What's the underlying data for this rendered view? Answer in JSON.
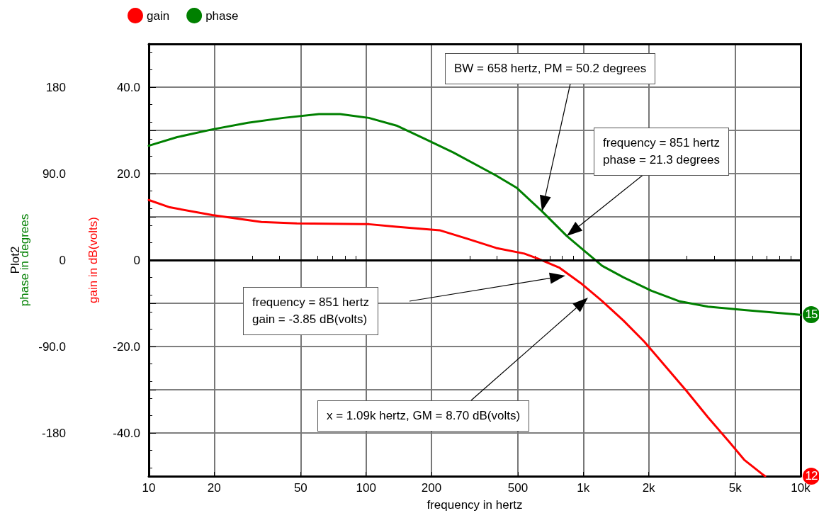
{
  "chart_data": {
    "type": "line",
    "xlabel": "frequency in hertz",
    "ylabel": "gain in dB(volts)",
    "y2label": "phase in degrees",
    "log": "x",
    "grid": true,
    "legend": "top left",
    "marker": "none",
    "line_style": "solid",
    "xlim": [
      10,
      10000
    ],
    "xticks": [
      10,
      20,
      {
        "value": 30,
        "label": null
      },
      {
        "value": 40,
        "label": null
      },
      50,
      {
        "value": 60,
        "label": null
      },
      {
        "value": 70,
        "label": null
      },
      {
        "value": 80,
        "label": null
      },
      {
        "value": 90,
        "label": null
      },
      100,
      200,
      {
        "value": 300,
        "label": null
      },
      {
        "value": 400,
        "label": null
      },
      500,
      {
        "value": 600,
        "label": null
      },
      {
        "value": 700,
        "label": null
      },
      {
        "value": 800,
        "label": null
      },
      {
        "value": 900,
        "label": null
      },
      {
        "value": 1000,
        "label": "1k"
      },
      {
        "value": 2000,
        "label": "2k"
      },
      {
        "value": 3000,
        "label": null
      },
      {
        "value": 4000,
        "label": null
      },
      {
        "value": 5000,
        "label": "5k"
      },
      {
        "value": 6000,
        "label": null
      },
      {
        "value": 7000,
        "label": null
      },
      {
        "value": 8000,
        "label": null
      },
      {
        "value": 9000,
        "label": null
      },
      {
        "value": 10000,
        "label": "10k"
      }
    ],
    "ylim": [
      -50,
      50
    ],
    "yticks": [
      {
        "value": -50,
        "label": null
      },
      {
        "value": -40,
        "label": "-40.0"
      },
      {
        "value": -30,
        "label": null
      },
      {
        "value": -20,
        "label": "-20.0"
      },
      {
        "value": -10,
        "label": null
      },
      0,
      {
        "value": 10,
        "label": null
      },
      {
        "value": 20,
        "label": "20.0"
      },
      {
        "value": 30,
        "label": null
      },
      {
        "value": 40,
        "label": "40.0"
      },
      {
        "value": 50,
        "label": null
      }
    ],
    "y2lim": [
      -225,
      225
    ],
    "y2ticks": [
      -180,
      {
        "value": -90,
        "label": "-90.0"
      },
      0,
      {
        "value": 90,
        "label": "90.0"
      },
      180
    ],
    "ref_lines": [
      {
        "axis": "y",
        "value": 0,
        "color": "#000000"
      }
    ],
    "series": [
      {
        "name": "gain",
        "color": "#ff0000",
        "x": [
          10,
          12.5,
          19.6,
          33,
          48,
          103,
          138,
          218,
          294,
          397,
          535,
          620,
          778,
          977,
          1221,
          1530,
          1910,
          2400,
          3000,
          3750,
          4700,
          5500,
          6650,
          6870
        ],
        "values": [
          13.9,
          12.2,
          10.4,
          8.8,
          8.5,
          8.3,
          7.7,
          6.9,
          4.9,
          2.8,
          1.5,
          0.3,
          -1.8,
          -5.4,
          -9.5,
          -14.0,
          -18.9,
          -24.7,
          -30.4,
          -36.4,
          -42.1,
          -46.2,
          -49.5,
          -50
        ]
      },
      {
        "name": "phase",
        "color": "#008000",
        "axis": "y2",
        "x": [
          10,
          13.5,
          19.6,
          28.6,
          41.6,
          60.7,
          76,
          103,
          138,
          187,
          252,
          397,
          495,
          644,
          840,
          977,
          1221,
          1530,
          2060,
          2780,
          3750,
          5500,
          10000
        ],
        "values": [
          119,
          128,
          136,
          143,
          148,
          152,
          152,
          148,
          140,
          126,
          112,
          88,
          75,
          51,
          25,
          12.5,
          -6,
          -18,
          -32,
          -43,
          -48.5,
          -52,
          -57
        ]
      }
    ],
    "annotations": [
      "BW = 658 hertz, PM = 50.2 degrees",
      "frequency = 851 hertz\nphase = 21.3 degrees",
      "frequency = 851 hertz\ngain = -3.85 dB(volts)",
      "x = 1.09k hertz, GM = 8.70 dB(volts)",
      "Plot2",
      "12",
      "15"
    ]
  }
}
